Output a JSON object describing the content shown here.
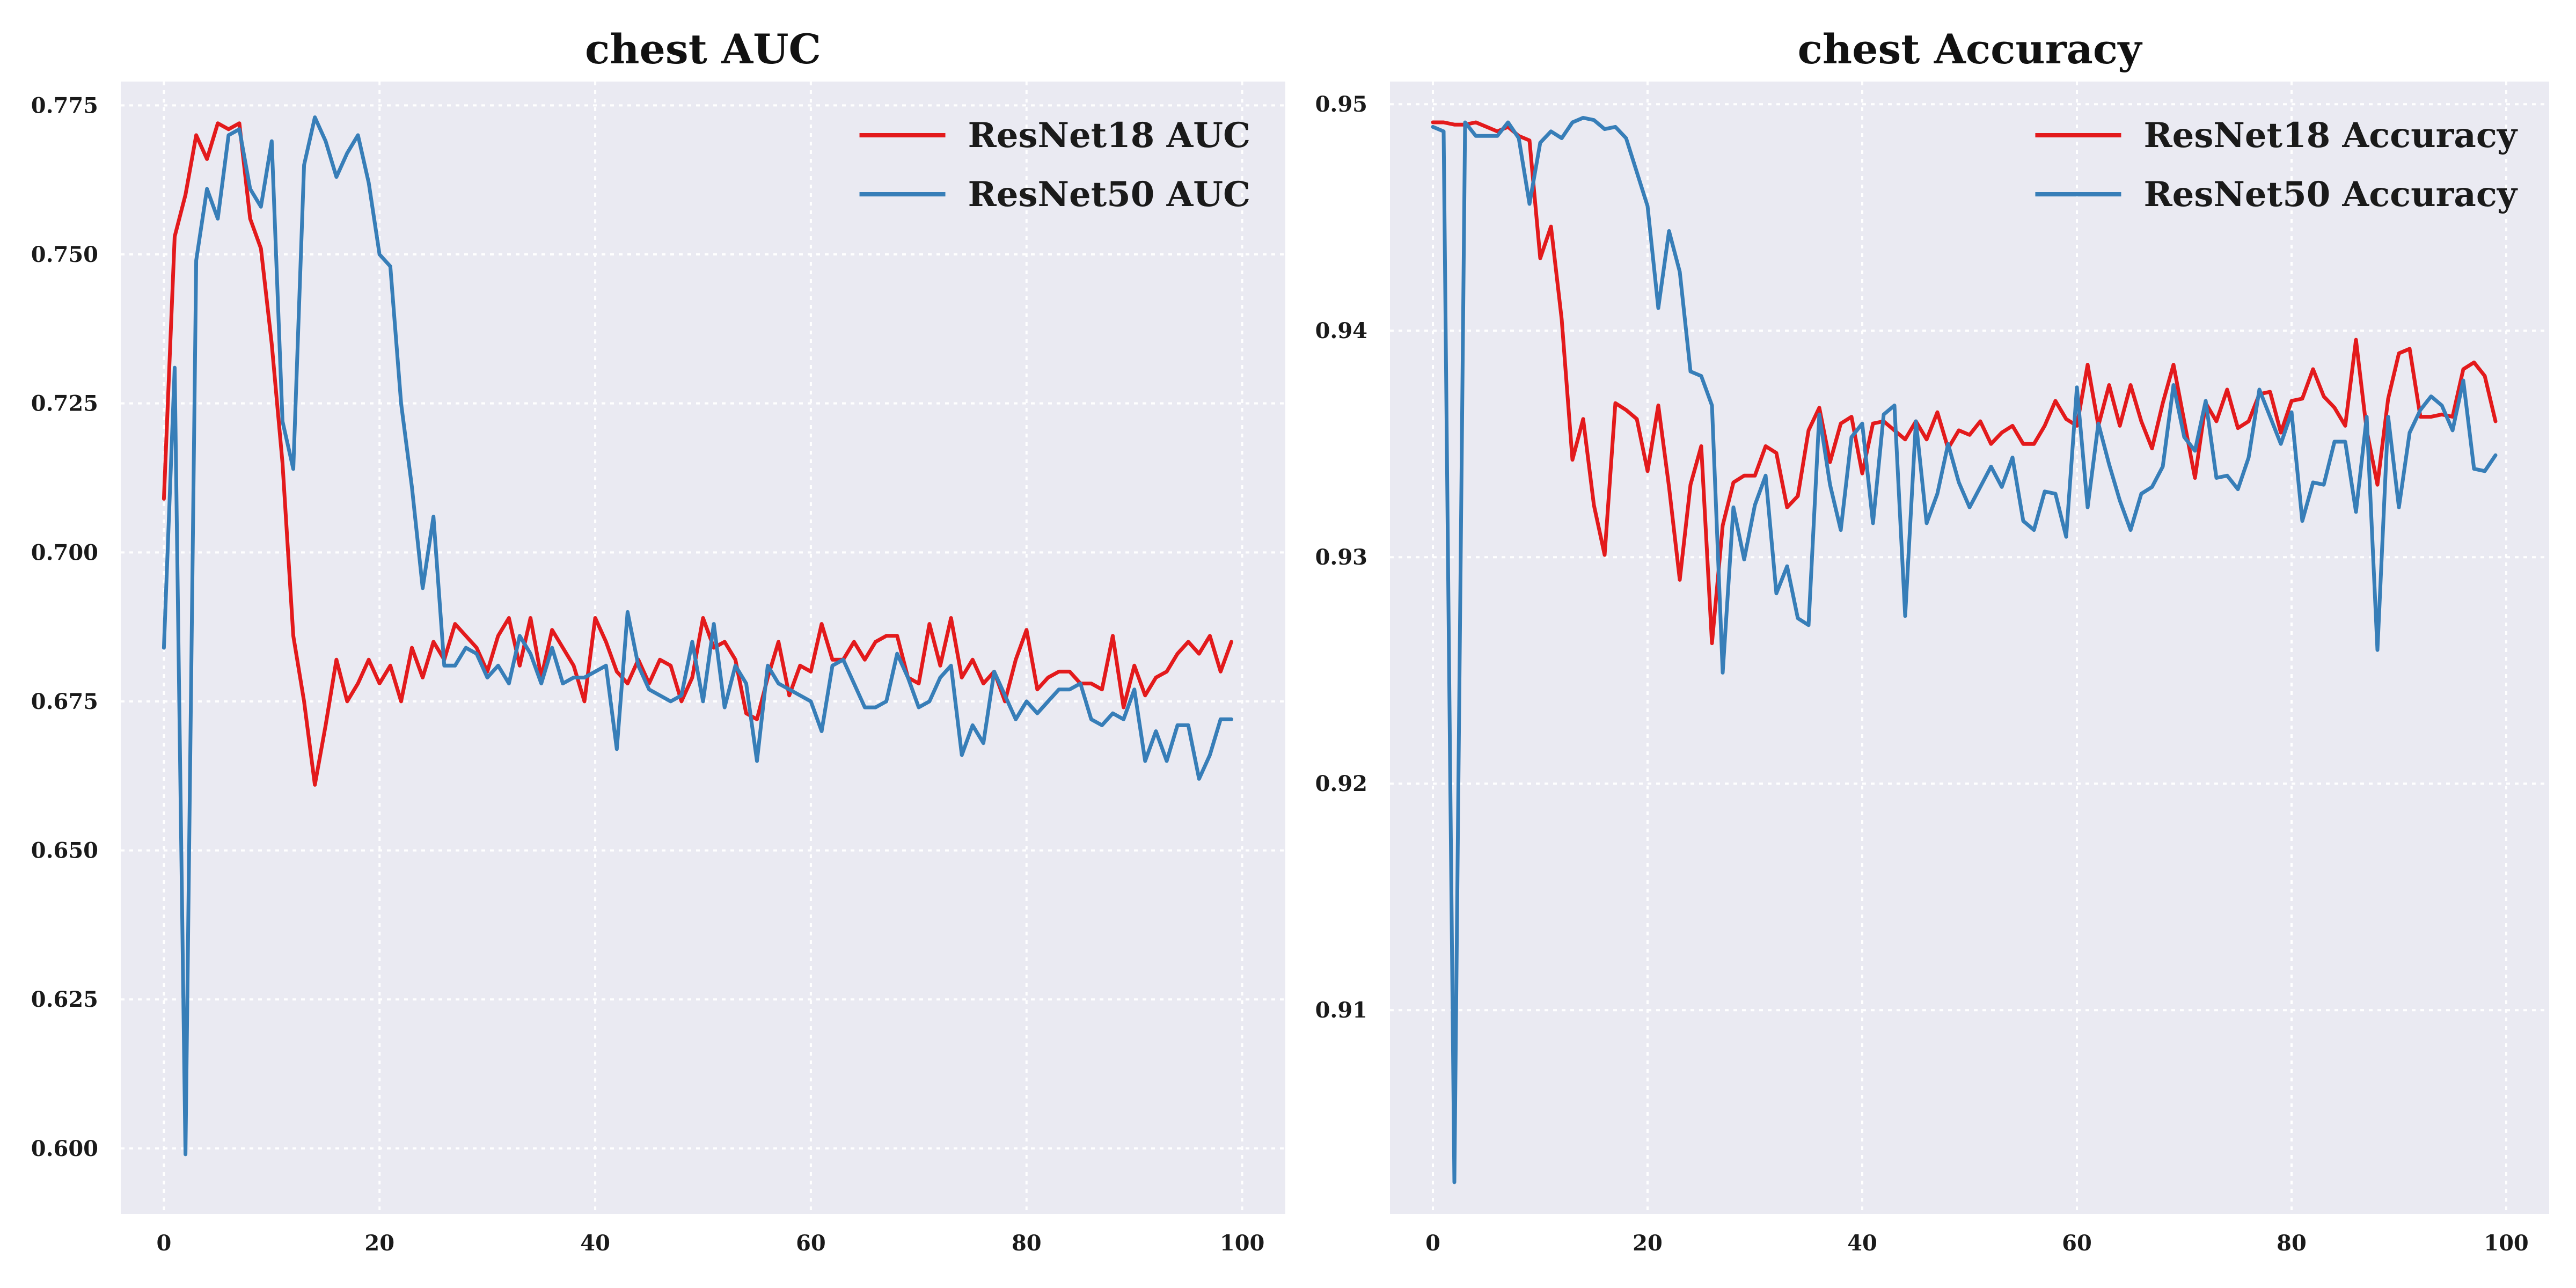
{
  "chart_data": [
    {
      "type": "line",
      "title": "chest AUC",
      "xlabel": "",
      "ylabel": "",
      "xlim": [
        -4,
        104
      ],
      "ylim": [
        0.589,
        0.779
      ],
      "xticks": [
        0,
        20,
        40,
        60,
        80,
        100
      ],
      "yticks": [
        0.6,
        0.625,
        0.65,
        0.675,
        0.7,
        0.725,
        0.75,
        0.775
      ],
      "ytick_labels": [
        "0.600",
        "0.625",
        "0.650",
        "0.675",
        "0.700",
        "0.725",
        "0.750",
        "0.775"
      ],
      "legend_position": "top-right",
      "grid": true,
      "series": [
        {
          "name": "ResNet18 AUC",
          "color": "#e31a1c",
          "values": [
            0.709,
            0.753,
            0.76,
            0.77,
            0.766,
            0.772,
            0.771,
            0.772,
            0.756,
            0.751,
            0.735,
            0.715,
            0.686,
            0.675,
            0.661,
            0.671,
            0.682,
            0.675,
            0.678,
            0.682,
            0.678,
            0.681,
            0.675,
            0.684,
            0.679,
            0.685,
            0.682,
            0.688,
            0.686,
            0.684,
            0.68,
            0.686,
            0.689,
            0.681,
            0.689,
            0.679,
            0.687,
            0.684,
            0.681,
            0.675,
            0.689,
            0.685,
            0.68,
            0.678,
            0.682,
            0.678,
            0.682,
            0.681,
            0.675,
            0.679,
            0.689,
            0.684,
            0.685,
            0.682,
            0.673,
            0.672,
            0.679,
            0.685,
            0.676,
            0.681,
            0.68,
            0.688,
            0.682,
            0.682,
            0.685,
            0.682,
            0.685,
            0.686,
            0.686,
            0.679,
            0.678,
            0.688,
            0.681,
            0.689,
            0.679,
            0.682,
            0.678,
            0.68,
            0.675,
            0.682,
            0.687,
            0.677,
            0.679,
            0.68,
            0.68,
            0.678,
            0.678,
            0.677,
            0.686,
            0.674,
            0.681,
            0.676,
            0.679,
            0.68,
            0.683,
            0.685,
            0.683,
            0.686,
            0.68,
            0.685
          ]
        },
        {
          "name": "ResNet50 AUC",
          "color": "#377eb8",
          "values": [
            0.684,
            0.731,
            0.599,
            0.749,
            0.761,
            0.756,
            0.77,
            0.771,
            0.761,
            0.758,
            0.769,
            0.722,
            0.714,
            0.765,
            0.773,
            0.769,
            0.763,
            0.767,
            0.77,
            0.762,
            0.75,
            0.748,
            0.725,
            0.711,
            0.694,
            0.706,
            0.681,
            0.681,
            0.684,
            0.683,
            0.679,
            0.681,
            0.678,
            0.686,
            0.683,
            0.678,
            0.684,
            0.678,
            0.679,
            0.679,
            0.68,
            0.681,
            0.667,
            0.69,
            0.681,
            0.677,
            0.676,
            0.675,
            0.676,
            0.685,
            0.675,
            0.688,
            0.674,
            0.681,
            0.678,
            0.665,
            0.681,
            0.678,
            0.677,
            0.676,
            0.675,
            0.67,
            0.681,
            0.682,
            0.678,
            0.674,
            0.674,
            0.675,
            0.683,
            0.679,
            0.674,
            0.675,
            0.679,
            0.681,
            0.666,
            0.671,
            0.668,
            0.68,
            0.676,
            0.672,
            0.675,
            0.673,
            0.675,
            0.677,
            0.677,
            0.678,
            0.672,
            0.671,
            0.673,
            0.672,
            0.677,
            0.665,
            0.67,
            0.665,
            0.671,
            0.671,
            0.662,
            0.666,
            0.672,
            0.672
          ]
        }
      ]
    },
    {
      "type": "line",
      "title": "chest Accuracy",
      "xlabel": "",
      "ylabel": "",
      "xlim": [
        -4,
        104
      ],
      "ylim": [
        0.901,
        0.951
      ],
      "xticks": [
        0,
        20,
        40,
        60,
        80,
        100
      ],
      "yticks": [
        0.91,
        0.92,
        0.93,
        0.94,
        0.95
      ],
      "ytick_labels": [
        "0.91",
        "0.92",
        "0.93",
        "0.94",
        "0.95"
      ],
      "legend_position": "top-right",
      "grid": true,
      "series": [
        {
          "name": "ResNet18 Accuracy",
          "color": "#e31a1c",
          "values": [
            0.9492,
            0.9492,
            0.9491,
            0.9491,
            0.9492,
            0.949,
            0.9488,
            0.949,
            0.9486,
            0.9484,
            0.9432,
            0.9446,
            0.9405,
            0.9343,
            0.9361,
            0.9323,
            0.9301,
            0.9368,
            0.9365,
            0.9361,
            0.9338,
            0.9367,
            0.9331,
            0.929,
            0.9332,
            0.9349,
            0.9262,
            0.9314,
            0.9333,
            0.9336,
            0.9336,
            0.9349,
            0.9346,
            0.9322,
            0.9327,
            0.9356,
            0.9366,
            0.9342,
            0.9359,
            0.9362,
            0.9337,
            0.9359,
            0.936,
            0.9356,
            0.9352,
            0.936,
            0.9352,
            0.9364,
            0.9348,
            0.9356,
            0.9354,
            0.936,
            0.935,
            0.9355,
            0.9358,
            0.935,
            0.935,
            0.9358,
            0.9369,
            0.9361,
            0.9358,
            0.9385,
            0.9358,
            0.9376,
            0.9358,
            0.9376,
            0.936,
            0.9348,
            0.9368,
            0.9385,
            0.936,
            0.9335,
            0.9368,
            0.936,
            0.9374,
            0.9357,
            0.936,
            0.9372,
            0.9373,
            0.9355,
            0.9369,
            0.937,
            0.9383,
            0.9371,
            0.9366,
            0.9358,
            0.9396,
            0.9356,
            0.9332,
            0.937,
            0.939,
            0.9392,
            0.9362,
            0.9362,
            0.9363,
            0.9362,
            0.9383,
            0.9386,
            0.938,
            0.936
          ]
        },
        {
          "name": "ResNet50 Accuracy",
          "color": "#377eb8",
          "values": [
            0.949,
            0.9488,
            0.9024,
            0.9492,
            0.9486,
            0.9486,
            0.9486,
            0.9492,
            0.9485,
            0.9456,
            0.9483,
            0.9488,
            0.9485,
            0.9492,
            0.9494,
            0.9493,
            0.9489,
            0.949,
            0.9485,
            0.947,
            0.9455,
            0.941,
            0.9444,
            0.9426,
            0.9382,
            0.938,
            0.9367,
            0.9249,
            0.9322,
            0.9299,
            0.9323,
            0.9336,
            0.9284,
            0.9296,
            0.9273,
            0.927,
            0.9363,
            0.9332,
            0.9312,
            0.9353,
            0.9359,
            0.9315,
            0.9363,
            0.9367,
            0.9274,
            0.936,
            0.9315,
            0.9328,
            0.935,
            0.9333,
            0.9322,
            0.9331,
            0.934,
            0.9331,
            0.9344,
            0.9316,
            0.9312,
            0.9329,
            0.9328,
            0.9309,
            0.9375,
            0.9322,
            0.9359,
            0.9341,
            0.9325,
            0.9312,
            0.9328,
            0.9331,
            0.934,
            0.9376,
            0.9353,
            0.9347,
            0.9369,
            0.9335,
            0.9336,
            0.933,
            0.9344,
            0.9374,
            0.9362,
            0.935,
            0.9364,
            0.9316,
            0.9333,
            0.9332,
            0.9351,
            0.9351,
            0.932,
            0.9362,
            0.9259,
            0.9362,
            0.9322,
            0.9355,
            0.9365,
            0.9371,
            0.9367,
            0.9356,
            0.9378,
            0.9339,
            0.9338,
            0.9345
          ]
        }
      ]
    }
  ]
}
